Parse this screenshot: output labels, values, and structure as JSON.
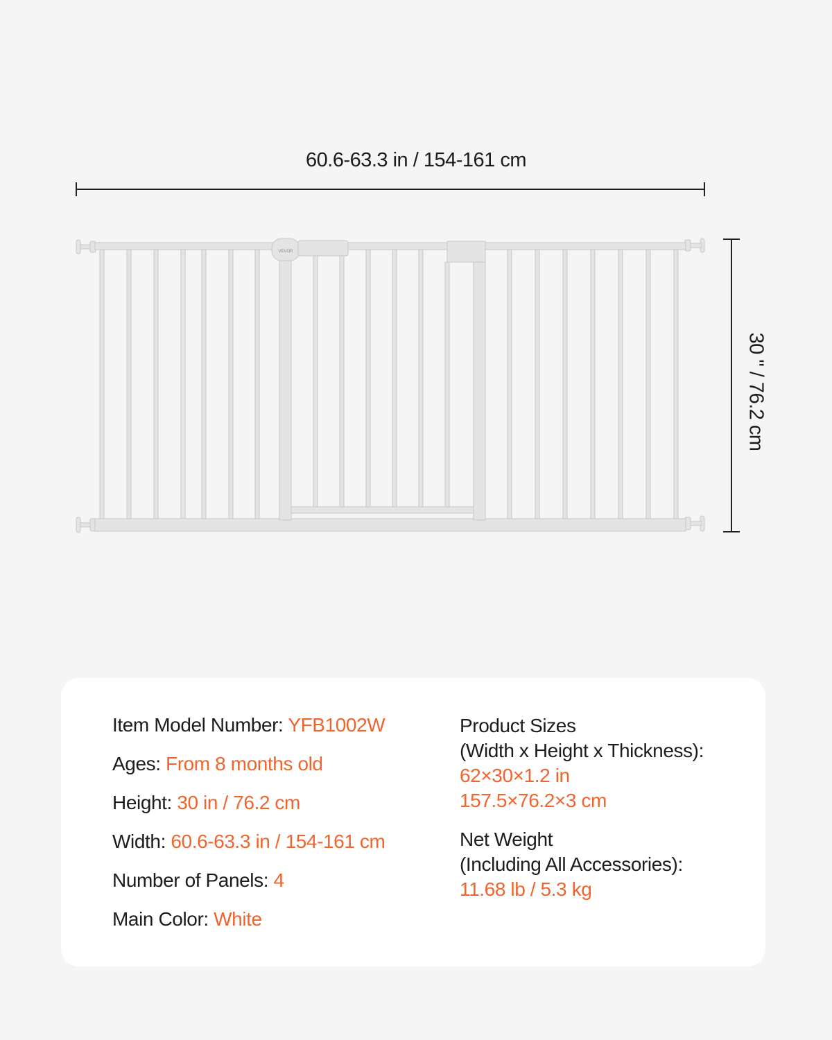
{
  "dimensions": {
    "width_label": "60.6-63.3 in / 154-161 cm",
    "height_label": "30 \" / 76.2 cm"
  },
  "product_brand_mark": "VEVOR",
  "colors": {
    "accent": "#f0642d",
    "background": "#f5f5f5",
    "card": "#ffffff"
  },
  "specs_left": [
    {
      "label": "Item Model Number: ",
      "value": "YFB1002W"
    },
    {
      "label": "Ages: ",
      "value": "From 8 months old"
    },
    {
      "label": "Height: ",
      "value": "30 in / 76.2 cm"
    },
    {
      "label": "Width: ",
      "value": "60.6-63.3 in / 154-161 cm"
    },
    {
      "label": "Number of Panels: ",
      "value": "4"
    },
    {
      "label": "Main Color: ",
      "value": "White"
    }
  ],
  "specs_right": {
    "sizes": {
      "label_1": "Product Sizes",
      "label_2": "(Width x Height x Thickness):",
      "value_1": "62×30×1.2 in",
      "value_2": "157.5×76.2×3 cm"
    },
    "weight": {
      "label_1": "Net Weight",
      "label_2": "(Including All Accessories):",
      "value_1": "11.68 lb / 5.3 kg"
    }
  }
}
